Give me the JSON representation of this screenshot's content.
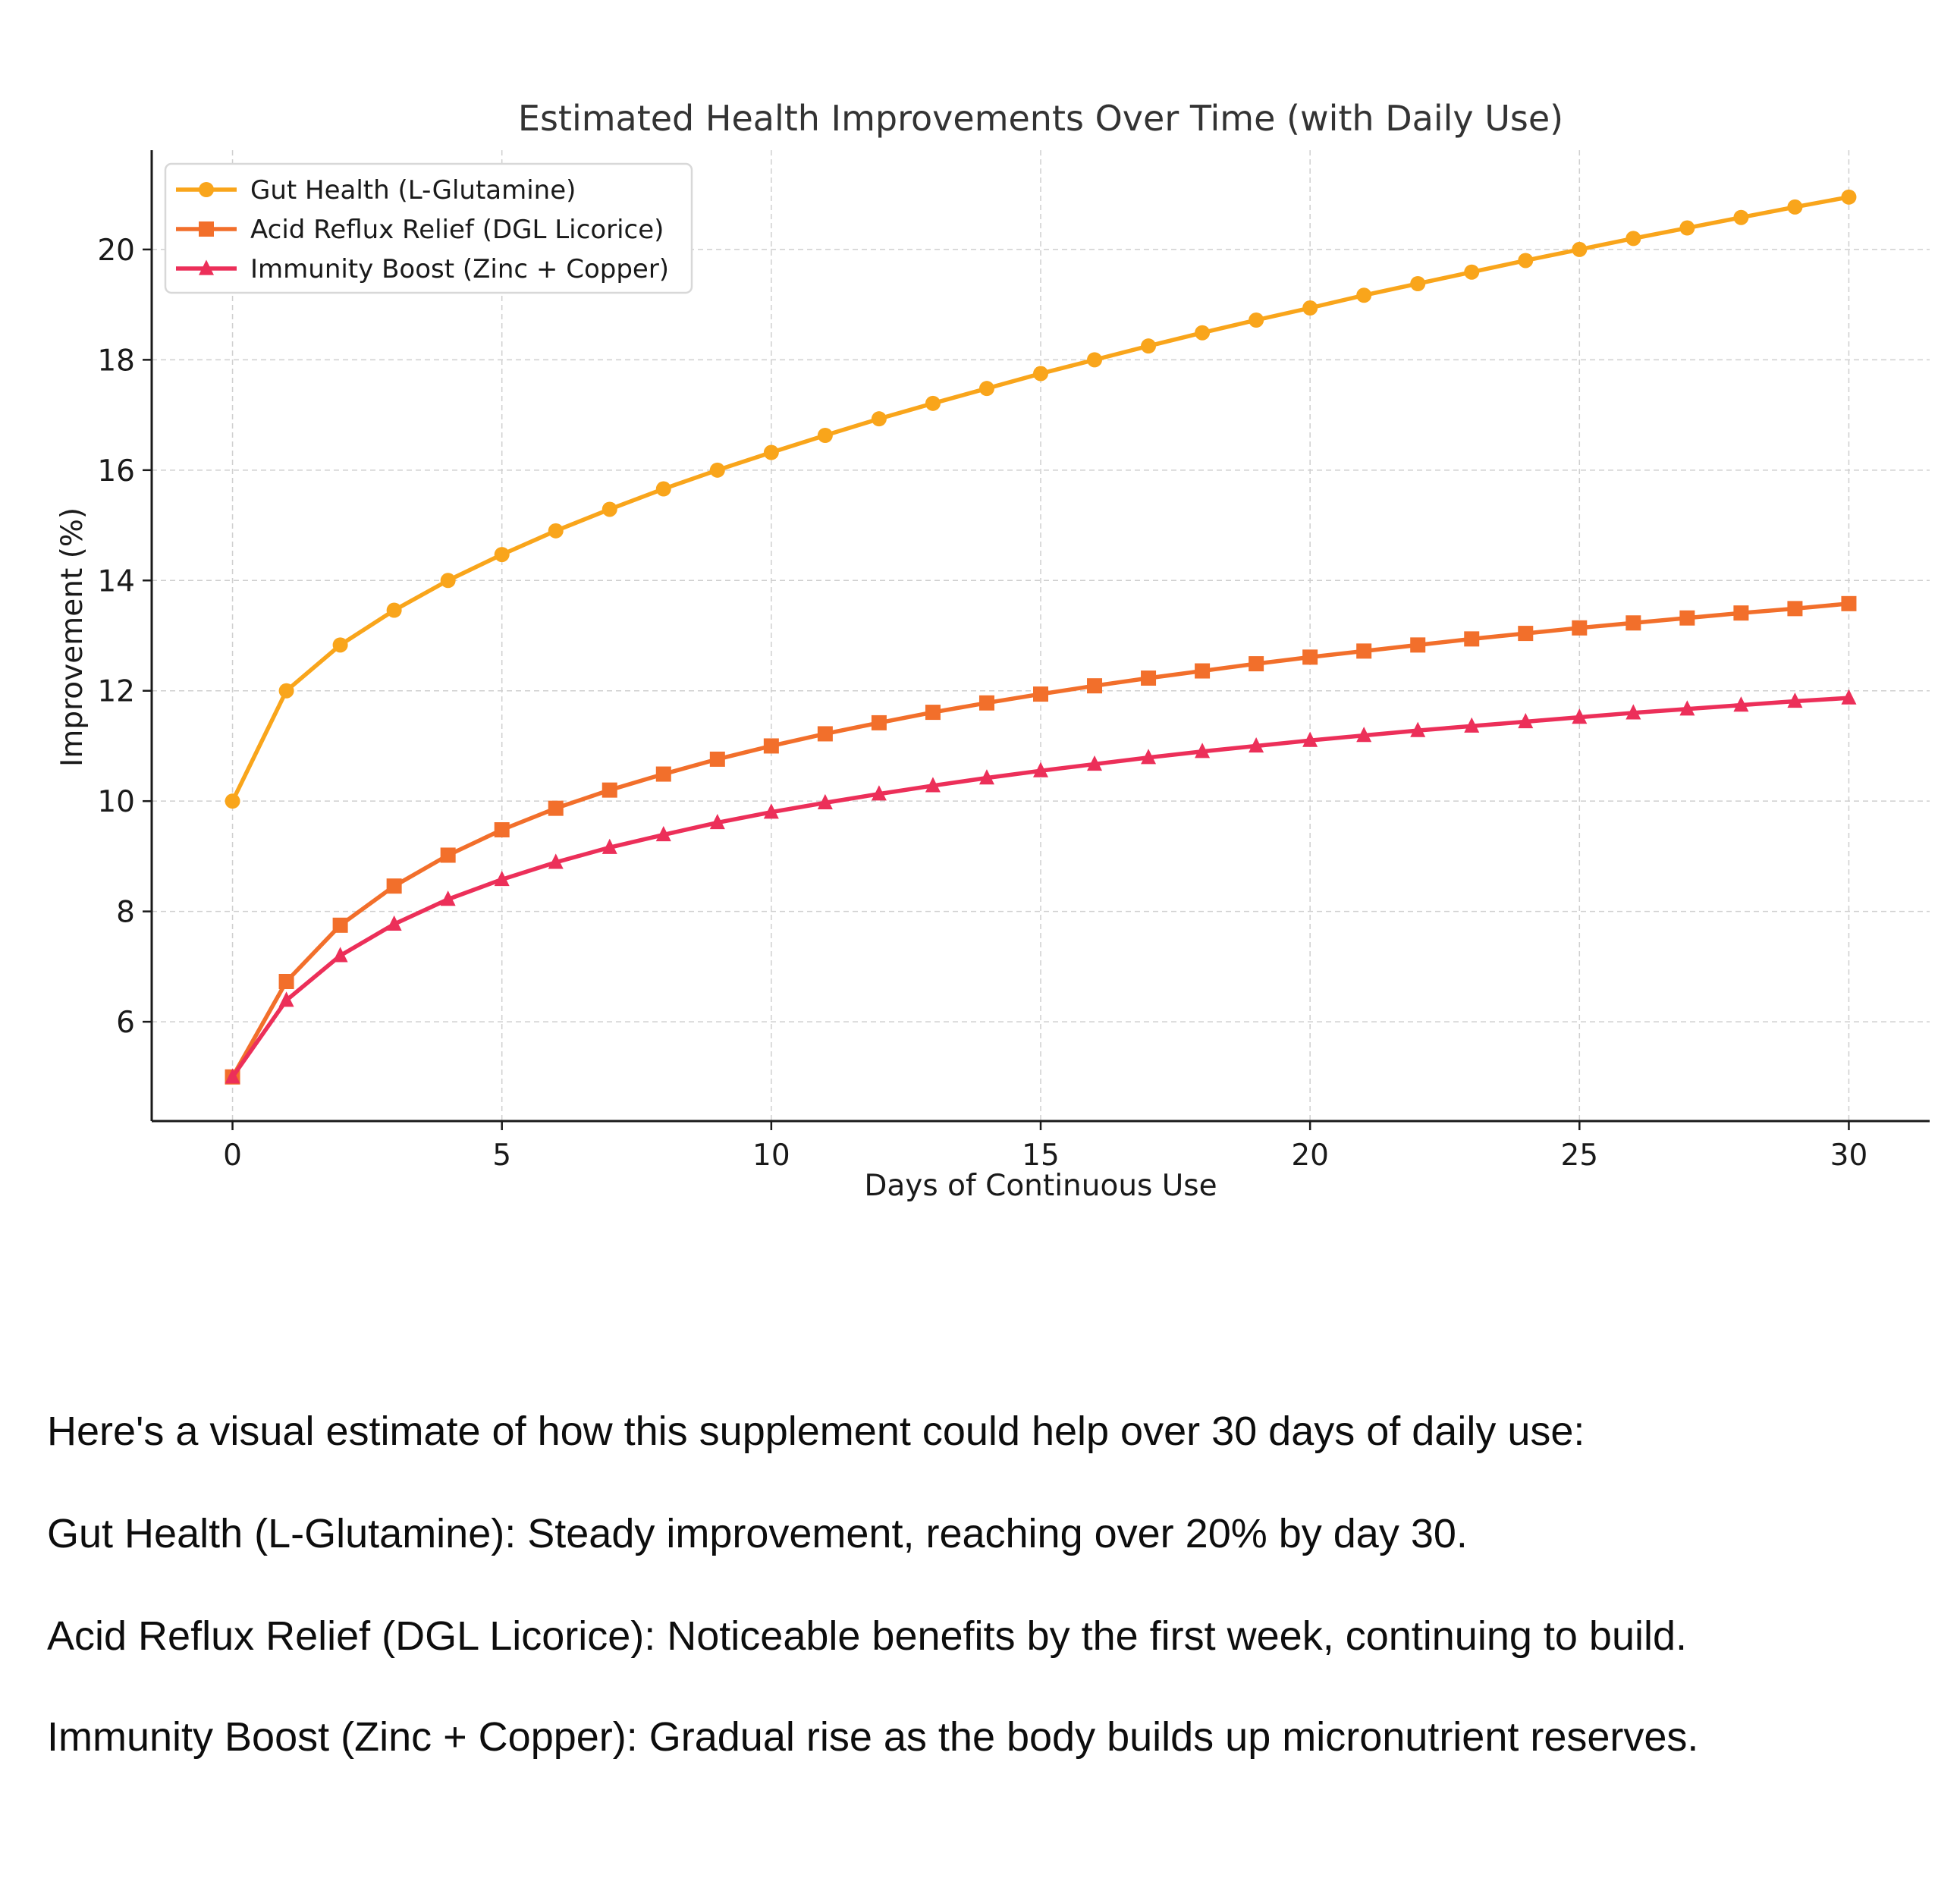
{
  "chart_data": {
    "type": "line",
    "title": "Estimated Health Improvements Over Time (with Daily Use)",
    "xlabel": "Days of Continuous Use",
    "ylabel": "Improvement (%)",
    "xlim": [
      -1.5,
      31.5
    ],
    "ylim": [
      4.2,
      21.8
    ],
    "xticks": [
      0,
      5,
      10,
      15,
      20,
      25,
      30
    ],
    "yticks": [
      6,
      8,
      10,
      12,
      14,
      16,
      18,
      20
    ],
    "grid": true,
    "legend_position": "top-left",
    "x": [
      0,
      1,
      2,
      3,
      4,
      5,
      6,
      7,
      8,
      9,
      10,
      11,
      12,
      13,
      14,
      15,
      16,
      17,
      18,
      19,
      20,
      21,
      22,
      23,
      24,
      25,
      26,
      27,
      28,
      29,
      30
    ],
    "series": [
      {
        "name": "Gut Health (L-Glutamine)",
        "color": "#f9a51b",
        "marker": "circle",
        "values": [
          10.0,
          12.0,
          12.83,
          13.46,
          14.0,
          14.47,
          14.9,
          15.29,
          15.66,
          16.0,
          16.32,
          16.63,
          16.93,
          17.21,
          17.48,
          17.75,
          18.0,
          18.25,
          18.49,
          18.72,
          18.94,
          19.17,
          19.38,
          19.59,
          19.8,
          20.0,
          20.2,
          20.39,
          20.58,
          20.77,
          20.95
        ]
      },
      {
        "name": "Acid Reflux Relief (DGL Licorice)",
        "color": "#f26f2b",
        "marker": "square",
        "values": [
          5.0,
          6.73,
          7.75,
          8.46,
          9.02,
          9.48,
          9.87,
          10.2,
          10.49,
          10.76,
          11.0,
          11.22,
          11.42,
          11.61,
          11.78,
          11.94,
          12.09,
          12.23,
          12.36,
          12.49,
          12.61,
          12.72,
          12.83,
          12.94,
          13.04,
          13.14,
          13.23,
          13.32,
          13.41,
          13.49,
          13.58
        ]
      },
      {
        "name": "Immunity Boost (Zinc + Copper)",
        "color": "#ec2f59",
        "marker": "triangle",
        "values": [
          5.0,
          6.39,
          7.2,
          7.77,
          8.22,
          8.58,
          8.89,
          9.16,
          9.39,
          9.61,
          9.8,
          9.97,
          10.13,
          10.28,
          10.42,
          10.55,
          10.67,
          10.79,
          10.9,
          11.0,
          11.1,
          11.19,
          11.28,
          11.36,
          11.44,
          11.52,
          11.6,
          11.67,
          11.74,
          11.81,
          11.87
        ]
      }
    ]
  },
  "text": {
    "intro": "Here's a visual estimate of how this supplement could help over 30 days of daily use:",
    "gut": "Gut Health (L-Glutamine): Steady improvement, reaching over 20% by day 30.",
    "reflux": "Acid Reflux Relief (DGL Licorice): Noticeable benefits by the first week, continuing to build.",
    "immunity": "Immunity Boost (Zinc + Copper): Gradual rise as the body builds up micronutrient reserves."
  }
}
